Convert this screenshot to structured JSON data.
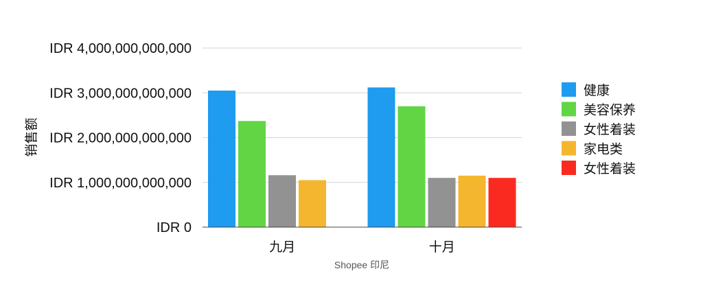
{
  "chart_data": {
    "type": "bar",
    "title": "",
    "xlabel": "Shopee 印尼",
    "ylabel": "销售额",
    "categories": [
      "九月",
      "十月"
    ],
    "ylim": [
      0,
      4000000000000
    ],
    "yticks": [
      {
        "value": 0,
        "label": "IDR 0"
      },
      {
        "value": 1000000000000,
        "label": "IDR 1,000,000,000,000"
      },
      {
        "value": 2000000000000,
        "label": "IDR 2,000,000,000,000"
      },
      {
        "value": 3000000000000,
        "label": "IDR 3,000,000,000,000"
      },
      {
        "value": 4000000000000,
        "label": "IDR 4,000,000,000,000"
      }
    ],
    "grid": true,
    "legend_position": "right",
    "series": [
      {
        "name": "健康",
        "color": "#1F9BF0",
        "values": [
          3050000000000,
          3120000000000
        ]
      },
      {
        "name": "美容保养",
        "color": "#62D544",
        "values": [
          2370000000000,
          2700000000000
        ]
      },
      {
        "name": "女性着装",
        "color": "#929292",
        "values": [
          1160000000000,
          1100000000000
        ]
      },
      {
        "name": "家电类",
        "color": "#F5B62F",
        "values": [
          1050000000000,
          1150000000000
        ]
      },
      {
        "name": "女性着装",
        "color": "#FB2A20",
        "values": [
          null,
          1100000000000
        ]
      }
    ]
  }
}
